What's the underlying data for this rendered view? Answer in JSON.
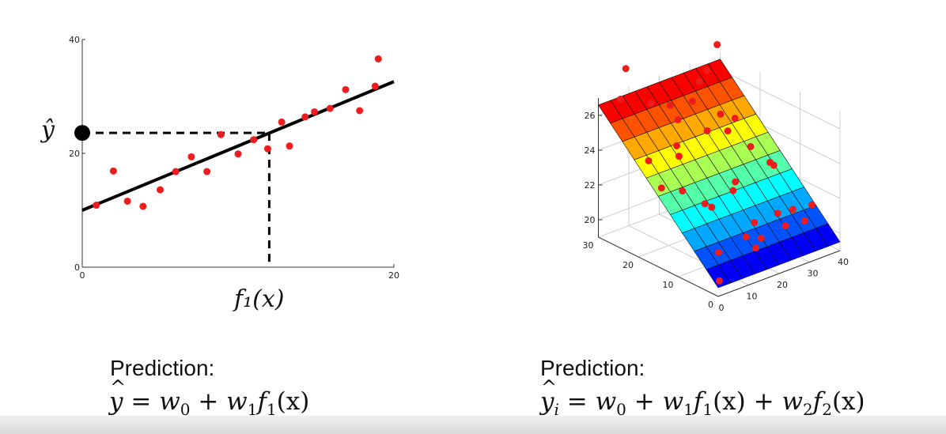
{
  "chart_data": [
    {
      "type": "scatter",
      "xlabel": "f₁(x)",
      "ylabel": "ŷ",
      "xlim": [
        0,
        20
      ],
      "ylim": [
        0,
        40
      ],
      "x_ticks": [
        "0",
        "20"
      ],
      "y_ticks": [
        "0",
        "20",
        "40"
      ],
      "points": {
        "x": [
          0.9,
          2.0,
          2.9,
          3.9,
          5.0,
          6.0,
          7.0,
          8.0,
          8.9,
          10.0,
          11.0,
          11.9,
          12.8,
          13.3,
          14.3,
          14.9,
          15.9,
          16.9,
          17.8,
          18.8,
          19.0
        ],
        "y": [
          10.9,
          16.9,
          11.6,
          10.7,
          13.6,
          16.8,
          19.4,
          16.8,
          23.3,
          19.9,
          22.4,
          20.8,
          25.5,
          21.3,
          26.4,
          27.3,
          27.9,
          31.2,
          27.5,
          31.8,
          36.6
        ]
      },
      "fit_line": {
        "x": [
          0,
          20
        ],
        "y": [
          10.0,
          32.6
        ]
      },
      "query": {
        "x": 12.0,
        "y": 23.6
      },
      "grid": false
    },
    {
      "type": "surface3d",
      "x_ticks": [
        "0",
        "10",
        "20",
        "30",
        "40"
      ],
      "y_ticks": [
        "0",
        "10",
        "20",
        "30"
      ],
      "z_ticks": [
        "20",
        "22",
        "24",
        "26"
      ],
      "xlim": [
        0,
        40
      ],
      "ylim": [
        0,
        30
      ],
      "zlim": [
        19,
        27
      ],
      "surface": {
        "z_at_y0": 19.5,
        "z_at_y30": 26.6,
        "grid_cells": 10
      },
      "grid": true
    }
  ],
  "captions": {
    "left_label": "Prediction:",
    "right_label": "Prediction:"
  },
  "formulas": {
    "left": {
      "y": "y",
      "eq": " = ",
      "w0": "w",
      "w0_sub": "0",
      "plus": " + ",
      "w1": "w",
      "w1_sub": "1",
      "f1": "f",
      "f1_sub": "1",
      "arg": "(x)"
    },
    "right": {
      "y": "y",
      "y_sub": "i",
      "eq": " = ",
      "w0": "w",
      "w0_sub": "0",
      "plus1": " + ",
      "w1": "w",
      "w1_sub": "1",
      "f1": "f",
      "f1_sub": "1",
      "arg1": "(x)",
      "plus2": " + ",
      "w2": "w",
      "w2_sub": "2",
      "f2": "f",
      "f2_sub": "2",
      "arg2": "(x)"
    }
  },
  "colors": {
    "point": "#ee1c1c",
    "line": "#000000",
    "axis": "#333333",
    "surface_colormap": "jet"
  }
}
